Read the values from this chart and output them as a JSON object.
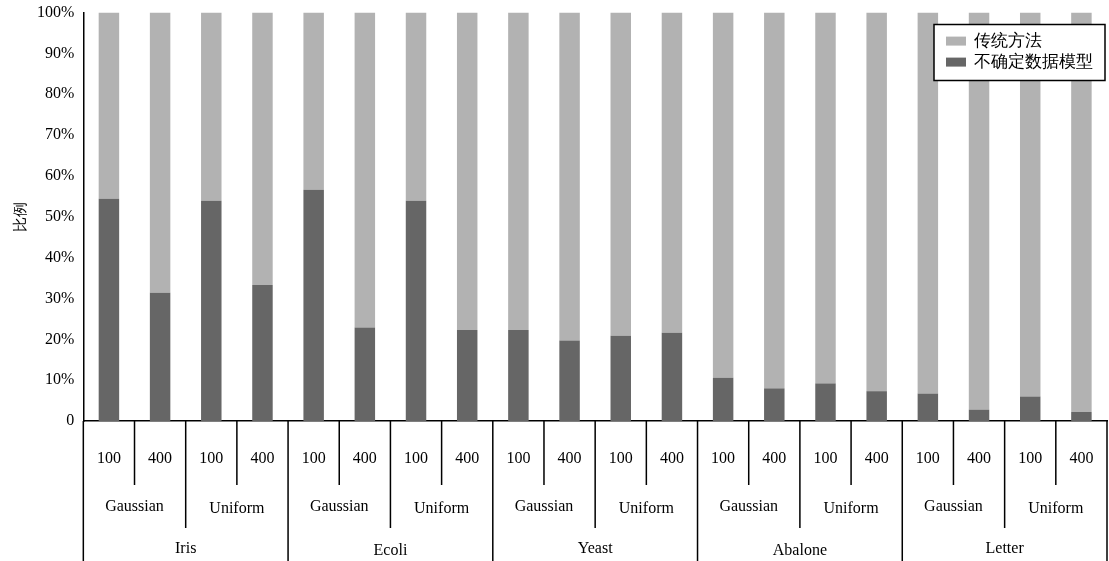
{
  "chart_data": {
    "type": "bar",
    "stacked": true,
    "ylabel": "比例",
    "categories": [
      "100",
      "400",
      "100",
      "400",
      "100",
      "400",
      "100",
      "400",
      "100",
      "400",
      "100",
      "400",
      "100",
      "400",
      "100",
      "400",
      "100",
      "400",
      "100",
      "400"
    ],
    "series": [
      {
        "name": "不确定数据模型",
        "color": "#666666",
        "values": [
          54.4,
          31.4,
          53.9,
          33.3,
          56.6,
          22.9,
          53.9,
          22.3,
          22.3,
          19.7,
          20.9,
          21.6,
          10.6,
          8.0,
          9.2,
          7.3,
          6.7,
          2.8,
          6.0,
          2.2
        ]
      },
      {
        "name": "传统方法",
        "color": "#b2b2b2",
        "values": [
          45.6,
          68.6,
          46.1,
          66.7,
          43.4,
          77.1,
          46.1,
          77.7,
          77.7,
          80.3,
          79.1,
          78.4,
          89.4,
          92.0,
          90.8,
          92.7,
          93.3,
          97.2,
          94.0,
          97.8
        ]
      }
    ],
    "annotations": [
      "Gaussian",
      "Uniform",
      "Gaussian",
      "Uniform",
      "Gaussian",
      "Uniform",
      "Gaussian",
      "Uniform",
      "Gaussian",
      "Uniform",
      "Iris",
      "Ecoli",
      "Yeast",
      "Abalone",
      "Letter"
    ],
    "ylim": [
      0,
      100
    ],
    "yticks": [
      0,
      {
        "value": 10,
        "label": "10%"
      },
      {
        "value": 20,
        "label": "20%"
      },
      {
        "value": 30,
        "label": "30%"
      },
      {
        "value": 40,
        "label": "40%"
      },
      {
        "value": 50,
        "label": "50%"
      },
      {
        "value": 60,
        "label": "60%"
      },
      {
        "value": 70,
        "label": "70%"
      },
      {
        "value": 80,
        "label": "80%"
      },
      {
        "value": 90,
        "label": "90%"
      },
      {
        "value": 100,
        "label": "100%"
      }
    ],
    "grid": false,
    "legend": "top right"
  }
}
